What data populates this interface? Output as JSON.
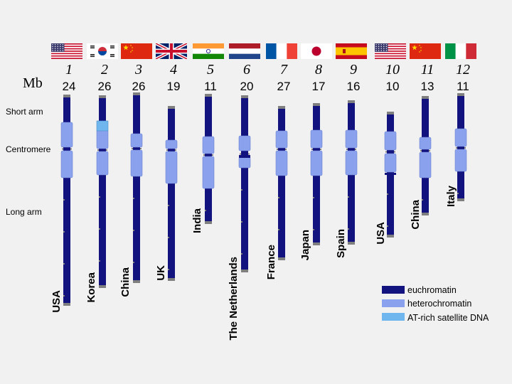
{
  "mb_label": "Mb",
  "row_labels": {
    "short_arm": "Short arm",
    "centromere": "Centromere",
    "long_arm": "Long arm"
  },
  "chromosomes": [
    {
      "number": "1",
      "size": "24",
      "country": "USA",
      "flag": "usa-flag-icon"
    },
    {
      "number": "2",
      "size": "26",
      "country": "Korea",
      "flag": "korea-flag-icon"
    },
    {
      "number": "3",
      "size": "26",
      "country": "China",
      "flag": "china-flag-icon"
    },
    {
      "number": "4",
      "size": "19",
      "country": "UK",
      "flag": "uk-flag-icon"
    },
    {
      "number": "5",
      "size": "11",
      "country": "India",
      "flag": "india-flag-icon"
    },
    {
      "number": "6",
      "size": "20",
      "country": "The Netherlands",
      "flag": "netherlands-flag-icon"
    },
    {
      "number": "7",
      "size": "27",
      "country": "France",
      "flag": "france-flag-icon"
    },
    {
      "number": "8",
      "size": "17",
      "country": "Japan",
      "flag": "japan-flag-icon"
    },
    {
      "number": "9",
      "size": "16",
      "country": "Spain",
      "flag": "spain-flag-icon"
    },
    {
      "number": "10",
      "size": "10",
      "country": "USA",
      "flag": "usa-flag-icon"
    },
    {
      "number": "11",
      "size": "13",
      "country": "China",
      "flag": "china-flag-icon"
    },
    {
      "number": "12",
      "size": "11",
      "country": "Italy",
      "flag": "italy-flag-icon"
    }
  ],
  "legend": [
    {
      "label": "euchromatin",
      "color": "#13137f"
    },
    {
      "label": "heterochromatin",
      "color": "#8aa2ee"
    },
    {
      "label": "AT-rich satellite DNA",
      "color": "#6fb6ee"
    }
  ],
  "colors": {
    "euchromatin": "#13137f",
    "heterochromatin": "#8aa2ee",
    "satellite": "#6fb6ee",
    "cap": "#7f7f7f",
    "background": "#f1f1f1"
  }
}
